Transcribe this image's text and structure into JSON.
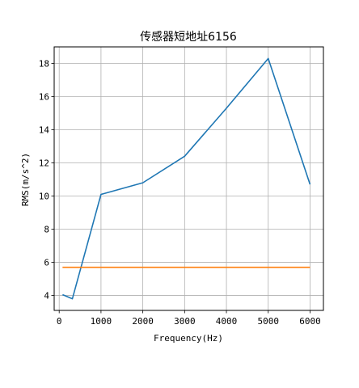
{
  "chart_data": {
    "type": "line",
    "title": "传感器短地址6156",
    "xlabel": "Frequency(Hz)",
    "ylabel": "RMS(m/s^2)",
    "xlim": [
      -120,
      6320
    ],
    "ylim": [
      3.1,
      19.0
    ],
    "xticks": [
      0,
      1000,
      2000,
      3000,
      4000,
      5000,
      6000
    ],
    "yticks": [
      4,
      6,
      8,
      10,
      12,
      14,
      16,
      18
    ],
    "grid": true,
    "series": [
      {
        "color": "#1f77b4",
        "x": [
          80,
          315,
          1000,
          2000,
          3000,
          4000,
          5000,
          6000
        ],
        "y": [
          4.05,
          3.8,
          10.1,
          10.8,
          12.4,
          15.3,
          18.3,
          10.7
        ]
      },
      {
        "color": "#ff7f0e",
        "x": [
          80,
          6000
        ],
        "y": [
          5.7,
          5.7
        ]
      }
    ]
  }
}
